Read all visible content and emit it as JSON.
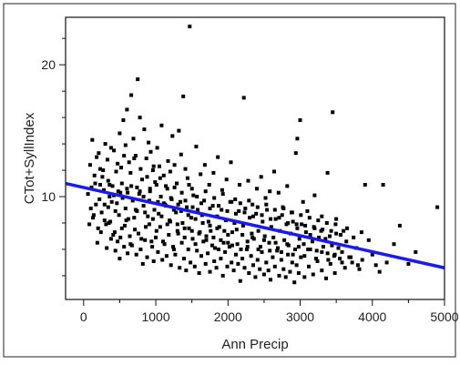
{
  "chart_data": {
    "type": "scatter",
    "title": "",
    "xlabel": "Ann Precip",
    "ylabel": "CTot+SyllIndex",
    "xlim": [
      -250,
      5000
    ],
    "ylim": [
      2.2,
      23.6
    ],
    "x_ticks": [
      0,
      1000,
      2000,
      3000,
      4000,
      5000
    ],
    "y_ticks": [
      10,
      20
    ],
    "y_minor_ticks": [
      4,
      6,
      8,
      12,
      14,
      16,
      18,
      22
    ],
    "x_minor_ticks": [
      500,
      1500,
      2500,
      3500,
      4500
    ],
    "grid": false,
    "marker_color": "#000000",
    "fit_color": "#1a1aee",
    "fit_line": {
      "x": [
        -250,
        5000
      ],
      "y": [
        11.0,
        4.6
      ]
    },
    "points": [
      [
        120,
        14.3
      ],
      [
        180,
        13.0
      ],
      [
        230,
        12.1
      ],
      [
        260,
        11.5
      ],
      [
        300,
        14.0
      ],
      [
        330,
        12.8
      ],
      [
        360,
        10.9
      ],
      [
        390,
        9.6
      ],
      [
        420,
        13.5
      ],
      [
        450,
        11.9
      ],
      [
        480,
        10.4
      ],
      [
        500,
        14.8
      ],
      [
        520,
        12.2
      ],
      [
        550,
        15.8
      ],
      [
        580,
        13.9
      ],
      [
        600,
        16.6
      ],
      [
        630,
        12.6
      ],
      [
        660,
        17.7
      ],
      [
        690,
        14.4
      ],
      [
        720,
        13.1
      ],
      [
        750,
        18.9
      ],
      [
        780,
        16.0
      ],
      [
        810,
        11.3
      ],
      [
        840,
        15.1
      ],
      [
        870,
        12.9
      ],
      [
        900,
        14.1
      ],
      [
        930,
        13.4
      ],
      [
        960,
        12.0
      ],
      [
        990,
        11.1
      ],
      [
        1020,
        13.7
      ],
      [
        1050,
        12.3
      ],
      [
        1080,
        15.4
      ],
      [
        1110,
        11.6
      ],
      [
        1140,
        10.8
      ],
      [
        1170,
        12.7
      ],
      [
        1200,
        11.9
      ],
      [
        1230,
        14.6
      ],
      [
        1260,
        12.4
      ],
      [
        1290,
        11.0
      ],
      [
        1320,
        15.0
      ],
      [
        1350,
        13.2
      ],
      [
        1380,
        17.6
      ],
      [
        1410,
        12.1
      ],
      [
        1440,
        11.4
      ],
      [
        1470,
        22.9
      ],
      [
        1500,
        10.6
      ],
      [
        1560,
        13.8
      ],
      [
        1620,
        11.7
      ],
      [
        1680,
        12.4
      ],
      [
        1740,
        10.9
      ],
      [
        1800,
        11.8
      ],
      [
        1860,
        13.0
      ],
      [
        1920,
        10.5
      ],
      [
        1980,
        11.3
      ],
      [
        2040,
        12.6
      ],
      [
        2100,
        9.8
      ],
      [
        2160,
        10.9
      ],
      [
        2220,
        17.5
      ],
      [
        2280,
        11.2
      ],
      [
        2340,
        9.4
      ],
      [
        2400,
        10.6
      ],
      [
        2460,
        11.5
      ],
      [
        2520,
        9.9
      ],
      [
        2580,
        10.4
      ],
      [
        2640,
        11.9
      ],
      [
        2700,
        10.3
      ],
      [
        2760,
        9.2
      ],
      [
        2820,
        10.8
      ],
      [
        2880,
        8.8
      ],
      [
        2940,
        13.3
      ],
      [
        2960,
        14.4
      ],
      [
        3000,
        15.8
      ],
      [
        3040,
        9.6
      ],
      [
        3100,
        8.9
      ],
      [
        3200,
        10.1
      ],
      [
        3300,
        8.5
      ],
      [
        3380,
        11.8
      ],
      [
        3450,
        16.4
      ],
      [
        3500,
        8.3
      ],
      [
        3600,
        7.4
      ],
      [
        3900,
        10.9
      ],
      [
        4150,
        10.9
      ],
      [
        4380,
        7.8
      ],
      [
        4900,
        9.2
      ],
      [
        60,
        10.2
      ],
      [
        100,
        9.1
      ],
      [
        130,
        8.4
      ],
      [
        160,
        11.0
      ],
      [
        200,
        7.6
      ],
      [
        220,
        9.8
      ],
      [
        250,
        8.8
      ],
      [
        280,
        10.5
      ],
      [
        310,
        7.9
      ],
      [
        340,
        9.2
      ],
      [
        370,
        8.1
      ],
      [
        400,
        10.8
      ],
      [
        430,
        7.3
      ],
      [
        460,
        9.5
      ],
      [
        490,
        8.6
      ],
      [
        510,
        6.9
      ],
      [
        540,
        9.9
      ],
      [
        570,
        7.8
      ],
      [
        600,
        10.6
      ],
      [
        620,
        8.3
      ],
      [
        650,
        6.4
      ],
      [
        680,
        9.7
      ],
      [
        710,
        7.5
      ],
      [
        740,
        8.9
      ],
      [
        770,
        10.2
      ],
      [
        800,
        6.8
      ],
      [
        830,
        9.3
      ],
      [
        860,
        7.7
      ],
      [
        890,
        8.5
      ],
      [
        920,
        10.4
      ],
      [
        950,
        6.2
      ],
      [
        980,
        9.0
      ],
      [
        1010,
        7.4
      ],
      [
        1040,
        8.7
      ],
      [
        1070,
        10.0
      ],
      [
        1100,
        6.6
      ],
      [
        1130,
        9.4
      ],
      [
        1160,
        7.9
      ],
      [
        1190,
        8.2
      ],
      [
        1220,
        9.8
      ],
      [
        1250,
        6.0
      ],
      [
        1280,
        8.8
      ],
      [
        1310,
        7.2
      ],
      [
        1340,
        9.6
      ],
      [
        1370,
        8.0
      ],
      [
        1400,
        6.9
      ],
      [
        1430,
        9.2
      ],
      [
        1460,
        7.6
      ],
      [
        1490,
        8.4
      ],
      [
        1520,
        10.1
      ],
      [
        1550,
        6.4
      ],
      [
        1580,
        9.0
      ],
      [
        1610,
        7.3
      ],
      [
        1640,
        8.6
      ],
      [
        1670,
        9.7
      ],
      [
        1700,
        6.7
      ],
      [
        1730,
        8.1
      ],
      [
        1760,
        7.4
      ],
      [
        1790,
        9.3
      ],
      [
        1820,
        6.1
      ],
      [
        1850,
        8.5
      ],
      [
        1880,
        7.7
      ],
      [
        1910,
        9.0
      ],
      [
        1940,
        6.5
      ],
      [
        1970,
        8.2
      ],
      [
        2000,
        7.1
      ],
      [
        2030,
        9.6
      ],
      [
        2060,
        6.3
      ],
      [
        2090,
        8.0
      ],
      [
        2120,
        7.5
      ],
      [
        2150,
        8.9
      ],
      [
        2180,
        6.0
      ],
      [
        2210,
        7.8
      ],
      [
        2240,
        9.1
      ],
      [
        2270,
        6.6
      ],
      [
        2300,
        8.4
      ],
      [
        2330,
        7.2
      ],
      [
        2360,
        6.8
      ],
      [
        2390,
        8.7
      ],
      [
        2420,
        7.4
      ],
      [
        2450,
        6.2
      ],
      [
        2480,
        8.1
      ],
      [
        2510,
        7.0
      ],
      [
        2540,
        9.0
      ],
      [
        2570,
        6.5
      ],
      [
        2600,
        7.7
      ],
      [
        2630,
        6.9
      ],
      [
        2660,
        8.3
      ],
      [
        2690,
        6.1
      ],
      [
        2720,
        7.4
      ],
      [
        2750,
        8.6
      ],
      [
        2780,
        6.7
      ],
      [
        2810,
        7.9
      ],
      [
        2840,
        6.3
      ],
      [
        2870,
        7.2
      ],
      [
        2900,
        8.1
      ],
      [
        2930,
        6.0
      ],
      [
        2960,
        7.6
      ],
      [
        2990,
        6.8
      ],
      [
        3020,
        7.9
      ],
      [
        3050,
        6.4
      ],
      [
        3080,
        7.3
      ],
      [
        3110,
        6.0
      ],
      [
        3140,
        7.1
      ],
      [
        3170,
        6.6
      ],
      [
        3200,
        7.6
      ],
      [
        3230,
        5.9
      ],
      [
        3260,
        6.9
      ],
      [
        3290,
        7.4
      ],
      [
        3320,
        6.2
      ],
      [
        3350,
        6.8
      ],
      [
        3380,
        5.7
      ],
      [
        3410,
        7.0
      ],
      [
        3440,
        6.3
      ],
      [
        3470,
        5.5
      ],
      [
        3500,
        7.2
      ],
      [
        3530,
        6.1
      ],
      [
        3580,
        5.8
      ],
      [
        3640,
        6.6
      ],
      [
        3700,
        5.4
      ],
      [
        3780,
        6.1
      ],
      [
        3860,
        5.2
      ],
      [
        4000,
        5.6
      ],
      [
        4100,
        4.3
      ],
      [
        4200,
        5.0
      ],
      [
        4500,
        4.9
      ],
      [
        80,
        7.9
      ],
      [
        140,
        8.6
      ],
      [
        190,
        6.5
      ],
      [
        240,
        7.3
      ],
      [
        290,
        9.4
      ],
      [
        320,
        6.1
      ],
      [
        350,
        8.0
      ],
      [
        380,
        6.8
      ],
      [
        410,
        7.1
      ],
      [
        440,
        5.9
      ],
      [
        470,
        6.6
      ],
      [
        500,
        5.3
      ],
      [
        530,
        7.6
      ],
      [
        560,
        6.2
      ],
      [
        590,
        8.2
      ],
      [
        610,
        5.7
      ],
      [
        640,
        7.0
      ],
      [
        670,
        6.3
      ],
      [
        700,
        8.4
      ],
      [
        730,
        5.6
      ],
      [
        760,
        7.2
      ],
      [
        790,
        6.0
      ],
      [
        820,
        4.9
      ],
      [
        850,
        6.7
      ],
      [
        880,
        5.4
      ],
      [
        910,
        7.9
      ],
      [
        940,
        6.6
      ],
      [
        970,
        5.1
      ],
      [
        1000,
        6.9
      ],
      [
        1030,
        5.8
      ],
      [
        1060,
        7.7
      ],
      [
        1090,
        5.2
      ],
      [
        1120,
        6.4
      ],
      [
        1150,
        5.5
      ],
      [
        1180,
        7.1
      ],
      [
        1210,
        4.8
      ],
      [
        1240,
        6.2
      ],
      [
        1270,
        5.6
      ],
      [
        1300,
        7.4
      ],
      [
        1330,
        4.6
      ],
      [
        1360,
        6.5
      ],
      [
        1390,
        5.3
      ],
      [
        1420,
        4.4
      ],
      [
        1450,
        6.0
      ],
      [
        1480,
        5.0
      ],
      [
        1510,
        6.8
      ],
      [
        1540,
        4.7
      ],
      [
        1570,
        5.9
      ],
      [
        1600,
        4.2
      ],
      [
        1630,
        5.5
      ],
      [
        1660,
        6.6
      ],
      [
        1690,
        4.9
      ],
      [
        1720,
        5.7
      ],
      [
        1750,
        4.3
      ],
      [
        1780,
        6.3
      ],
      [
        1810,
        5.1
      ],
      [
        1840,
        4.6
      ],
      [
        1870,
        6.0
      ],
      [
        1900,
        5.3
      ],
      [
        1930,
        4.0
      ],
      [
        1960,
        5.8
      ],
      [
        1990,
        4.7
      ],
      [
        2020,
        6.2
      ],
      [
        2050,
        5.0
      ],
      [
        2080,
        4.4
      ],
      [
        2110,
        5.6
      ],
      [
        2140,
        4.9
      ],
      [
        2170,
        3.6
      ],
      [
        2200,
        5.3
      ],
      [
        2230,
        4.6
      ],
      [
        2260,
        6.0
      ],
      [
        2290,
        4.2
      ],
      [
        2320,
        5.5
      ],
      [
        2350,
        4.8
      ],
      [
        2380,
        3.9
      ],
      [
        2410,
        5.2
      ],
      [
        2440,
        4.5
      ],
      [
        2470,
        5.8
      ],
      [
        2500,
        4.1
      ],
      [
        2530,
        5.0
      ],
      [
        2560,
        4.4
      ],
      [
        2590,
        3.7
      ],
      [
        2620,
        5.4
      ],
      [
        2650,
        4.7
      ],
      [
        2680,
        5.9
      ],
      [
        2710,
        4.0
      ],
      [
        2740,
        5.2
      ],
      [
        2770,
        4.5
      ],
      [
        2800,
        3.9
      ],
      [
        2830,
        5.6
      ],
      [
        2860,
        4.3
      ],
      [
        2890,
        5.0
      ],
      [
        2920,
        3.5
      ],
      [
        2950,
        4.8
      ],
      [
        2980,
        4.2
      ],
      [
        3010,
        5.4
      ],
      [
        3060,
        3.9
      ],
      [
        3120,
        4.7
      ],
      [
        3180,
        4.1
      ],
      [
        3240,
        5.1
      ],
      [
        3300,
        4.4
      ],
      [
        3360,
        3.8
      ],
      [
        3420,
        4.9
      ],
      [
        3480,
        4.2
      ],
      [
        3550,
        5.3
      ],
      [
        3620,
        4.6
      ],
      [
        3720,
        5.0
      ],
      [
        3820,
        4.5
      ],
      [
        4050,
        4.8
      ],
      [
        90,
        12.4
      ],
      [
        150,
        11.6
      ],
      [
        210,
        13.3
      ],
      [
        270,
        12.0
      ],
      [
        340,
        11.2
      ],
      [
        380,
        13.7
      ],
      [
        420,
        10.1
      ],
      [
        470,
        12.5
      ],
      [
        530,
        11.0
      ],
      [
        560,
        13.1
      ],
      [
        610,
        10.3
      ],
      [
        650,
        11.8
      ],
      [
        700,
        12.9
      ],
      [
        740,
        10.7
      ],
      [
        790,
        12.1
      ],
      [
        830,
        10.0
      ],
      [
        880,
        11.5
      ],
      [
        920,
        10.6
      ],
      [
        970,
        12.3
      ],
      [
        1010,
        10.9
      ],
      [
        1060,
        11.4
      ],
      [
        1110,
        9.5
      ],
      [
        1160,
        10.6
      ],
      [
        1210,
        9.9
      ],
      [
        1260,
        10.7
      ],
      [
        1310,
        9.4
      ],
      [
        1360,
        10.3
      ],
      [
        1410,
        9.7
      ],
      [
        1460,
        10.9
      ],
      [
        1510,
        9.2
      ],
      [
        1570,
        10.0
      ],
      [
        1630,
        9.5
      ],
      [
        1690,
        10.4
      ],
      [
        1750,
        9.1
      ],
      [
        1810,
        9.9
      ],
      [
        1870,
        9.3
      ],
      [
        1930,
        10.2
      ],
      [
        1990,
        8.9
      ],
      [
        2050,
        9.6
      ],
      [
        2110,
        8.7
      ],
      [
        2170,
        9.5
      ],
      [
        2230,
        8.8
      ],
      [
        2290,
        9.7
      ],
      [
        2350,
        8.5
      ],
      [
        2410,
        9.2
      ],
      [
        2470,
        8.6
      ],
      [
        2530,
        9.4
      ],
      [
        2590,
        8.3
      ],
      [
        2650,
        9.0
      ],
      [
        2710,
        8.4
      ],
      [
        2770,
        9.1
      ],
      [
        2830,
        8.0
      ],
      [
        2890,
        8.8
      ],
      [
        2950,
        7.9
      ],
      [
        3010,
        8.6
      ],
      [
        3070,
        7.8
      ],
      [
        3130,
        8.4
      ],
      [
        3190,
        7.7
      ],
      [
        3250,
        8.2
      ],
      [
        3310,
        7.5
      ],
      [
        3370,
        8.0
      ],
      [
        3430,
        7.4
      ],
      [
        3490,
        7.9
      ],
      [
        3560,
        7.1
      ],
      [
        3650,
        7.6
      ],
      [
        3740,
        6.9
      ],
      [
        3850,
        7.3
      ],
      [
        3950,
        6.7
      ],
      [
        4300,
        6.4
      ],
      [
        4600,
        5.8
      ],
      [
        110,
        10.7
      ],
      [
        170,
        9.4
      ],
      [
        230,
        10.9
      ],
      [
        290,
        8.2
      ],
      [
        360,
        10.0
      ],
      [
        440,
        8.9
      ],
      [
        510,
        10.3
      ],
      [
        580,
        9.1
      ],
      [
        660,
        10.8
      ],
      [
        720,
        9.0
      ],
      [
        780,
        10.4
      ],
      [
        850,
        8.8
      ],
      [
        910,
        9.7
      ],
      [
        960,
        8.3
      ],
      [
        1030,
        9.6
      ],
      [
        1080,
        8.5
      ],
      [
        1140,
        9.3
      ],
      [
        1200,
        8.1
      ],
      [
        1250,
        9.0
      ],
      [
        1300,
        7.9
      ],
      [
        1350,
        8.9
      ],
      [
        1400,
        7.6
      ],
      [
        1450,
        8.6
      ],
      [
        1500,
        7.4
      ],
      [
        1550,
        8.3
      ],
      [
        1600,
        7.2
      ],
      [
        1650,
        8.0
      ],
      [
        1700,
        7.0
      ],
      [
        1750,
        7.8
      ],
      [
        1800,
        6.9
      ],
      [
        1850,
        7.6
      ],
      [
        1900,
        6.7
      ],
      [
        1950,
        7.4
      ],
      [
        2000,
        6.5
      ],
      [
        2060,
        7.3
      ],
      [
        2130,
        6.4
      ],
      [
        2200,
        7.1
      ],
      [
        2270,
        6.2
      ],
      [
        2340,
        6.9
      ],
      [
        2420,
        6.0
      ],
      [
        2500,
        6.7
      ],
      [
        2580,
        5.9
      ],
      [
        2660,
        6.5
      ],
      [
        2740,
        5.8
      ],
      [
        2820,
        6.4
      ],
      [
        2900,
        5.6
      ],
      [
        2980,
        6.2
      ],
      [
        3060,
        5.5
      ],
      [
        3140,
        6.0
      ],
      [
        3220,
        5.3
      ],
      [
        3300,
        5.8
      ],
      [
        3390,
        5.2
      ],
      [
        3480,
        5.6
      ],
      [
        3580,
        5.0
      ],
      [
        3680,
        5.4
      ],
      [
        3800,
        4.8
      ]
    ]
  }
}
